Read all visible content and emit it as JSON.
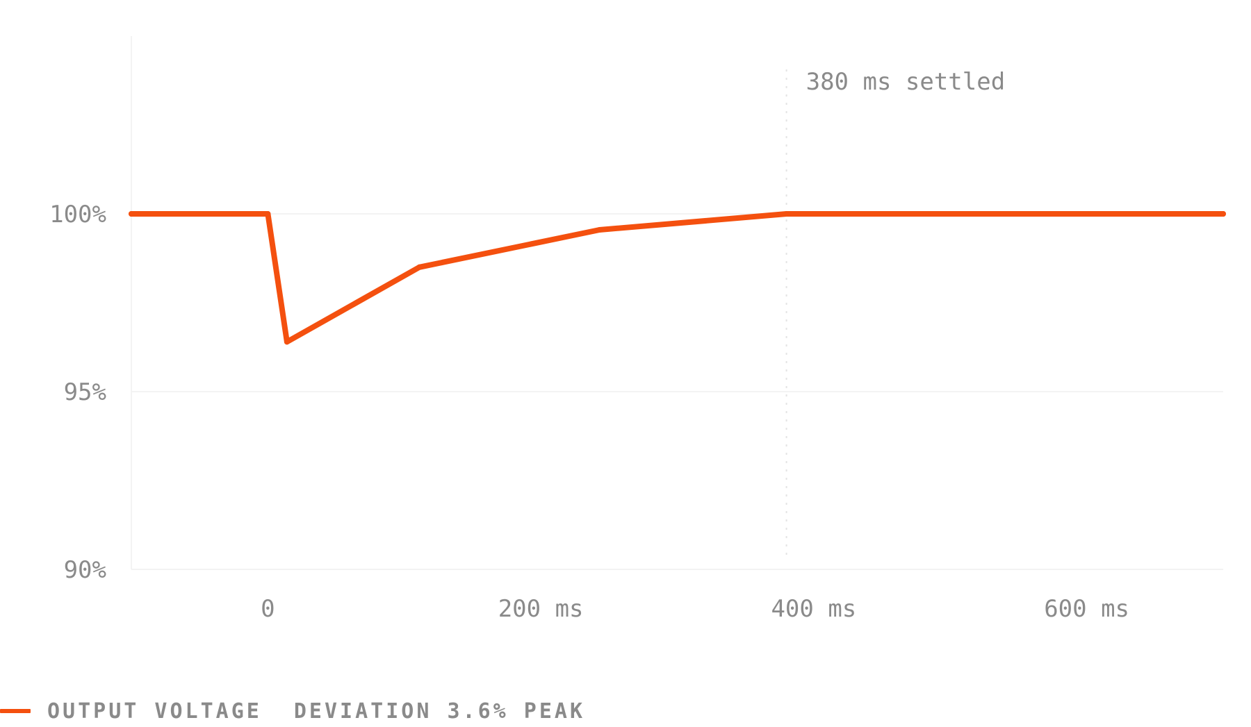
{
  "chart_data": {
    "type": "line",
    "x_unit": "ms",
    "y_unit": "%",
    "xlim": [
      -100,
      700
    ],
    "ylim": [
      90,
      105
    ],
    "x_ticks": [
      {
        "value": 0,
        "label": "0"
      },
      {
        "value": 200,
        "label": "200 ms"
      },
      {
        "value": 400,
        "label": "400 ms"
      },
      {
        "value": 600,
        "label": "600 ms"
      }
    ],
    "y_ticks": [
      {
        "value": 100,
        "label": "100%"
      },
      {
        "value": 95,
        "label": "95%"
      },
      {
        "value": 90,
        "label": "90%"
      }
    ],
    "grid": "horizontal",
    "series": [
      {
        "name": "OUTPUT VOLTAGE",
        "color": "#f4500f",
        "points": [
          {
            "x": -100,
            "y": 100
          },
          {
            "x": 0,
            "y": 100
          },
          {
            "x": 14,
            "y": 96.4
          },
          {
            "x": 111,
            "y": 98.5
          },
          {
            "x": 243,
            "y": 99.55
          },
          {
            "x": 380,
            "y": 100
          },
          {
            "x": 700,
            "y": 100
          }
        ]
      }
    ],
    "annotations": [
      {
        "type": "vline",
        "x": 380,
        "label": "380 ms settled"
      }
    ],
    "legend": {
      "placement": "bottom-left",
      "series_label": "OUTPUT VOLTAGE",
      "note": "DEVIATION 3.6% PEAK"
    }
  }
}
